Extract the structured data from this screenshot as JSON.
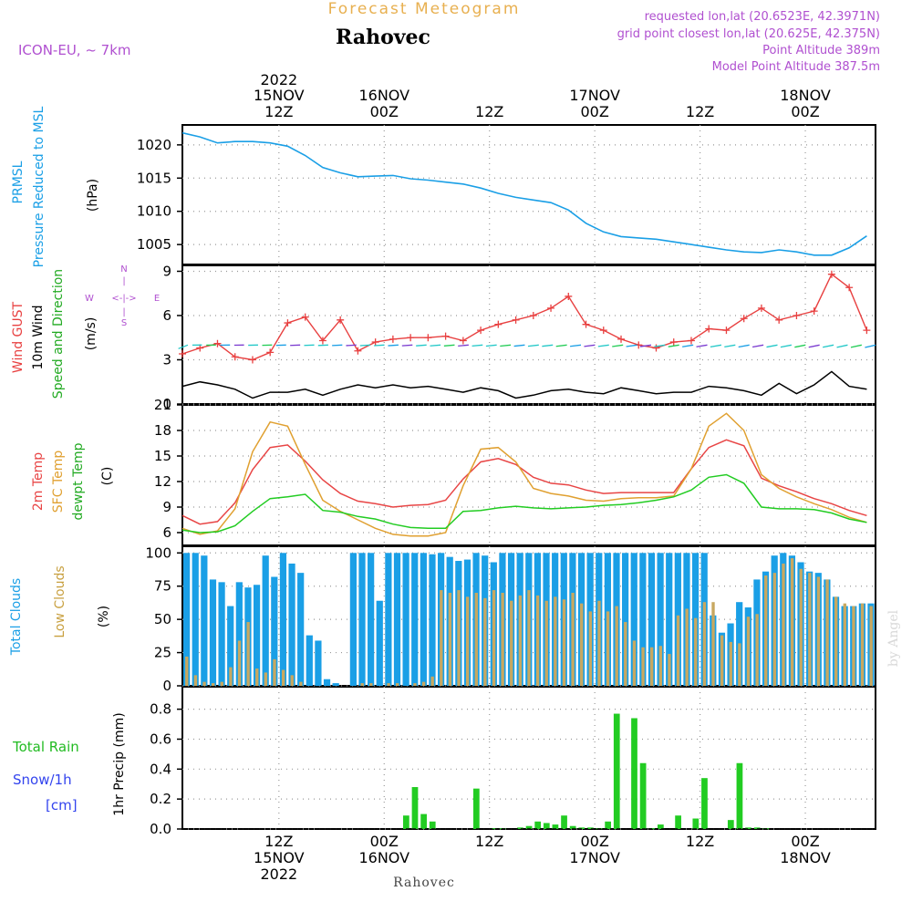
{
  "header": {
    "product": "Forecast Meteogram",
    "location": "Rahovec",
    "model": "ICON-EU, ~ 7km",
    "requested": "requested lon,lat (20.6523E, 42.3971N)",
    "grid_point": "grid point closest lon,lat (20.625E, 42.375N)",
    "point_altitude": "Point Altitude 389m",
    "model_altitude": "Model Point Altitude 387.5m",
    "footer_location": "Rahovec",
    "credit": "by Angel"
  },
  "time_axis": {
    "top": [
      {
        "hour": "12Z",
        "day": "15NOV",
        "year": "2022"
      },
      {
        "hour": "00Z",
        "day": "16NOV",
        "year": ""
      },
      {
        "hour": "12Z",
        "day": "",
        "year": ""
      },
      {
        "hour": "00Z",
        "day": "17NOV",
        "year": ""
      },
      {
        "hour": "12Z",
        "day": "",
        "year": ""
      },
      {
        "hour": "00Z",
        "day": "18NOV",
        "year": ""
      }
    ],
    "bottom": [
      {
        "hour": "12Z",
        "day": "15NOV",
        "year": "2022"
      },
      {
        "hour": "00Z",
        "day": "16NOV",
        "year": ""
      },
      {
        "hour": "12Z",
        "day": "",
        "year": ""
      },
      {
        "hour": "00Z",
        "day": "17NOV",
        "year": ""
      },
      {
        "hour": "12Z",
        "day": "",
        "year": ""
      },
      {
        "hour": "00Z",
        "day": "18NOV",
        "year": ""
      }
    ]
  },
  "panel_labels": {
    "pressure": {
      "line1": "PRMSL",
      "line2": "Pressure Reduced to MSL",
      "unit": "(hPa)"
    },
    "wind": {
      "gust": "Wind GUST",
      "wind10": "10m Wind",
      "dir": "Speed and Direction",
      "unit": "(m/s)",
      "compass": {
        "n": "N",
        "s": "S",
        "w": "W",
        "e": "E",
        "ns": "|",
        "we": "<-|->"
      }
    },
    "temp": {
      "t2m": "2m Temp",
      "sfc": "SFC Temp",
      "dew": "dewpt Temp",
      "unit": "(C)"
    },
    "clouds": {
      "total": "Total Clouds",
      "low": "Low Clouds",
      "unit": "(%)"
    },
    "precip": {
      "rain": "Total  Rain",
      "snow": "Snow/1h",
      "snow_unit": "[cm]",
      "title": "1hr Precip (mm)"
    }
  },
  "colors": {
    "pressure": "#1a9fe6",
    "gust": "#e84040",
    "wind": "#000000",
    "arrows": "#22c8c8",
    "t2m": "#e84545",
    "sfc": "#e0a030",
    "dew": "#22cc22",
    "total_cloud": "#1a9fe6",
    "low_cloud": "#c8a860",
    "rain": "#22cc22",
    "purple": "#b050d0"
  },
  "chart_data": [
    {
      "type": "line",
      "name": "pressure",
      "x_hours": [
        0,
        2,
        4,
        6,
        8,
        10,
        12,
        14,
        16,
        18,
        20,
        22,
        24,
        26,
        28,
        30,
        32,
        34,
        36,
        38,
        40,
        42,
        44,
        46,
        48,
        50,
        52,
        54,
        56,
        58,
        60,
        62,
        64,
        66,
        68,
        70,
        72,
        74,
        76,
        78
      ],
      "series": [
        {
          "name": "PRMSL",
          "values": [
            1021.8,
            1021.2,
            1020.3,
            1020.5,
            1020.5,
            1020.3,
            1019.8,
            1018.4,
            1016.6,
            1015.8,
            1015.2,
            1015.3,
            1015.4,
            1014.9,
            1014.7,
            1014.4,
            1014.1,
            1013.5,
            1012.7,
            1012.1,
            1011.7,
            1011.3,
            1010.2,
            1008.2,
            1006.9,
            1006.2,
            1006.0,
            1005.8,
            1005.4,
            1005.0,
            1004.6,
            1004.2,
            1003.9,
            1003.8,
            1004.2,
            1003.9,
            1003.4,
            1003.4,
            1004.5,
            1006.3
          ]
        }
      ],
      "ylim": [
        1002,
        1023
      ],
      "yticks": [
        1005,
        1010,
        1015,
        1020
      ]
    },
    {
      "type": "line",
      "name": "wind",
      "x_hours": [
        0,
        2,
        4,
        6,
        8,
        10,
        12,
        14,
        16,
        18,
        20,
        22,
        24,
        26,
        28,
        30,
        32,
        34,
        36,
        38,
        40,
        42,
        44,
        46,
        48,
        50,
        52,
        54,
        56,
        58,
        60,
        62,
        64,
        66,
        68,
        70,
        72,
        74,
        76,
        78
      ],
      "series": [
        {
          "name": "Wind GUST",
          "values": [
            3.4,
            3.8,
            4.1,
            3.2,
            3.0,
            3.5,
            5.5,
            5.9,
            4.3,
            5.7,
            3.6,
            4.2,
            4.4,
            4.5,
            4.5,
            4.6,
            4.3,
            5.0,
            5.4,
            5.7,
            6.0,
            6.5,
            7.3,
            5.4,
            5.0,
            4.4,
            4.0,
            3.8,
            4.2,
            4.3,
            5.1,
            5.0,
            5.8,
            6.5,
            5.7,
            6.0,
            6.3,
            8.8,
            7.9,
            5.0
          ]
        },
        {
          "name": "10m Wind",
          "values": [
            1.2,
            1.5,
            1.3,
            1.0,
            0.4,
            0.8,
            0.8,
            1.0,
            0.6,
            1.0,
            1.3,
            1.1,
            1.3,
            1.1,
            1.2,
            1.0,
            0.8,
            1.1,
            0.9,
            0.4,
            0.6,
            0.9,
            1.0,
            0.8,
            0.7,
            1.1,
            0.9,
            0.7,
            0.8,
            0.8,
            1.2,
            1.1,
            0.9,
            0.6,
            1.4,
            0.7,
            1.3,
            2.2,
            1.2,
            1.0
          ]
        }
      ],
      "ylim": [
        0,
        9.4
      ],
      "yticks": [
        0,
        3,
        6,
        9
      ]
    },
    {
      "type": "line",
      "name": "temperature",
      "x_hours": [
        0,
        2,
        4,
        6,
        8,
        10,
        12,
        14,
        16,
        18,
        20,
        22,
        24,
        26,
        28,
        30,
        32,
        34,
        36,
        38,
        40,
        42,
        44,
        46,
        48,
        50,
        52,
        54,
        56,
        58,
        60,
        62,
        64,
        66,
        68,
        70,
        72,
        74,
        76,
        78
      ],
      "series": [
        {
          "name": "2m Temp",
          "values": [
            8.0,
            7.0,
            7.3,
            9.5,
            13.4,
            16.0,
            16.3,
            14.4,
            12.2,
            10.6,
            9.7,
            9.4,
            9.0,
            9.2,
            9.3,
            9.8,
            12.3,
            14.3,
            14.7,
            14.0,
            12.5,
            11.8,
            11.6,
            11.0,
            10.6,
            10.7,
            10.7,
            10.7,
            10.7,
            13.5,
            16.0,
            16.9,
            16.2,
            12.4,
            11.5,
            10.8,
            10.0,
            9.4,
            8.6,
            8.0
          ]
        },
        {
          "name": "SFC Temp",
          "values": [
            6.5,
            5.8,
            6.2,
            8.8,
            15.5,
            19.0,
            18.5,
            14.0,
            9.8,
            8.5,
            7.5,
            6.5,
            5.8,
            5.6,
            5.6,
            6.0,
            11.5,
            15.8,
            16.0,
            14.3,
            11.2,
            10.6,
            10.3,
            9.8,
            9.7,
            10.0,
            10.1,
            10.1,
            10.3,
            13.5,
            18.5,
            20.0,
            18.0,
            12.8,
            11.2,
            10.2,
            9.4,
            8.7,
            7.8,
            7.2
          ]
        },
        {
          "name": "dewpt Temp",
          "values": [
            6.3,
            6.0,
            6.1,
            6.8,
            8.5,
            10.0,
            10.2,
            10.5,
            8.6,
            8.4,
            7.9,
            7.6,
            7.0,
            6.6,
            6.5,
            6.5,
            8.5,
            8.6,
            8.9,
            9.1,
            8.9,
            8.8,
            8.9,
            9.0,
            9.2,
            9.3,
            9.5,
            9.8,
            10.2,
            11.0,
            12.5,
            12.8,
            11.8,
            9.0,
            8.8,
            8.8,
            8.7,
            8.3,
            7.6,
            7.2
          ]
        }
      ],
      "ylim": [
        4.5,
        21
      ],
      "yticks": [
        6,
        9,
        12,
        15,
        18,
        21
      ]
    },
    {
      "type": "bar",
      "name": "clouds",
      "x_hours": [
        0,
        1,
        2,
        3,
        4,
        5,
        6,
        7,
        8,
        9,
        10,
        11,
        12,
        13,
        14,
        15,
        16,
        17,
        18,
        19,
        20,
        21,
        22,
        23,
        24,
        25,
        26,
        27,
        28,
        29,
        30,
        31,
        32,
        33,
        34,
        35,
        36,
        37,
        38,
        39,
        40,
        41,
        42,
        43,
        44,
        45,
        46,
        47,
        48,
        49,
        50,
        51,
        52,
        53,
        54,
        55,
        56,
        57,
        58,
        59,
        60,
        61,
        62,
        63,
        64,
        65,
        66,
        67,
        68,
        69,
        70,
        71,
        72,
        73,
        74,
        75,
        76,
        77,
        78
      ],
      "series": [
        {
          "name": "Total Clouds",
          "values": [
            100,
            100,
            98,
            80,
            78,
            60,
            78,
            74,
            76,
            98,
            82,
            100,
            92,
            85,
            38,
            34,
            5,
            2,
            0,
            100,
            100,
            100,
            64,
            100,
            100,
            100,
            100,
            100,
            99,
            100,
            97,
            94,
            95,
            100,
            98,
            93,
            100,
            100,
            100,
            100,
            100,
            100,
            100,
            100,
            100,
            100,
            100,
            100,
            100,
            100,
            100,
            100,
            100,
            100,
            100,
            100,
            100,
            100,
            100,
            100,
            53,
            40,
            47,
            63,
            59,
            80,
            86,
            98,
            100,
            98,
            93,
            86,
            85,
            80,
            67,
            60,
            60,
            62,
            62
          ]
        },
        {
          "name": "Low Clouds",
          "values": [
            22,
            8,
            3,
            2,
            3,
            14,
            34,
            48,
            13,
            10,
            20,
            12,
            8,
            3,
            0,
            0,
            0,
            0,
            0,
            0,
            2,
            2,
            0,
            2,
            2,
            0,
            2,
            3,
            7,
            72,
            70,
            72,
            67,
            70,
            66,
            72,
            70,
            64,
            68,
            72,
            68,
            64,
            67,
            65,
            70,
            62,
            56,
            64,
            56,
            60,
            48,
            34,
            29,
            29,
            30,
            24,
            53,
            58,
            51,
            63,
            63,
            38,
            33,
            32,
            52,
            54,
            83,
            85,
            92,
            96,
            88,
            85,
            82,
            80,
            67,
            62,
            60,
            62,
            60
          ]
        }
      ],
      "ylim": [
        0,
        105
      ],
      "yticks": [
        0,
        25,
        50,
        75,
        100
      ]
    },
    {
      "type": "bar",
      "name": "precipitation",
      "x_hours": [
        25,
        26,
        27,
        28,
        33,
        35,
        36,
        38,
        39,
        40,
        41,
        42,
        43,
        44,
        45,
        46,
        47,
        48,
        49,
        51,
        52,
        53,
        54,
        56,
        58,
        59,
        62,
        63,
        64,
        65,
        66
      ],
      "series": [
        {
          "name": "Total Rain",
          "values": [
            0.09,
            0.28,
            0.1,
            0.05,
            0.27,
            0.005,
            0.005,
            0.01,
            0.02,
            0.05,
            0.04,
            0.03,
            0.09,
            0.02,
            0.01,
            0.01,
            0.005,
            0.05,
            0.77,
            0.74,
            0.44,
            0.005,
            0.03,
            0.09,
            0.07,
            0.34,
            0.06,
            0.44,
            0.01,
            0.01,
            0.005
          ]
        }
      ],
      "ylim": [
        0,
        0.95
      ],
      "yticks": [
        0,
        0.2,
        0.4,
        0.6,
        0.8
      ]
    }
  ]
}
